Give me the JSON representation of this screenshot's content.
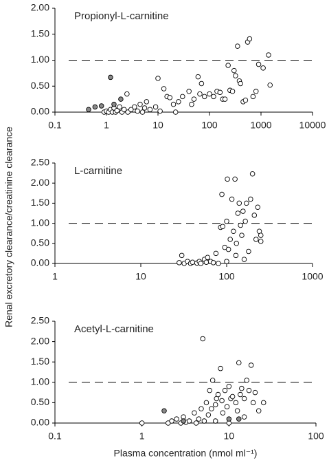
{
  "chart_data": [
    {
      "type": "scatter",
      "title": "Propionyl-L-carnitine",
      "xlog": true,
      "ref_line": 1,
      "xlim": [
        0.1,
        10000
      ],
      "xticks": [
        0.1,
        1,
        10,
        100,
        1000,
        10000
      ],
      "ylim": [
        0,
        2
      ],
      "yticks": [
        {
          "value": 0,
          "label": "0.00"
        },
        {
          "value": 0.5,
          "label": "0.50"
        },
        {
          "value": 1,
          "label": "1.00"
        },
        {
          "value": 1.5,
          "label": "1.50"
        },
        {
          "value": 2,
          "label": "2.00"
        }
      ],
      "series": [
        {
          "color": "#ffffff",
          "x": [
            0.9,
            1,
            1.1,
            1.2,
            1.3,
            1.4,
            1.5,
            1.6,
            1.8,
            2,
            2.2,
            2.5,
            2.6,
            3,
            3.5,
            4,
            4.5,
            5,
            5.5,
            6,
            7,
            9,
            10,
            11,
            13,
            15,
            17,
            20,
            22,
            25,
            30,
            40,
            45,
            50,
            60,
            65,
            70,
            80,
            100,
            120,
            140,
            160,
            180,
            200,
            230,
            250,
            280,
            300,
            320,
            350,
            380,
            400,
            450,
            500,
            550,
            600,
            700,
            800,
            900,
            1100,
            1400,
            1500
          ],
          "values": [
            0,
            0.02,
            0,
            0.05,
            0,
            0.08,
            0,
            0.03,
            0.1,
            0,
            0.05,
            0.35,
            0,
            0.05,
            0.1,
            0.02,
            0.15,
            0,
            0.08,
            0.2,
            0.05,
            0.1,
            0.65,
            0.02,
            0.45,
            0.3,
            0.28,
            0.15,
            0,
            0.2,
            0.3,
            0.4,
            0.15,
            0.25,
            0.68,
            0.35,
            0.55,
            0.3,
            0.35,
            0.3,
            0.4,
            0.38,
            0.25,
            0.25,
            0.9,
            0.42,
            0.4,
            0.8,
            0.7,
            1.27,
            0.6,
            0.55,
            0.2,
            0.23,
            1.35,
            1.41,
            0.3,
            0.4,
            0.92,
            0.85,
            1.1,
            0.52
          ]
        },
        {
          "color": "#8a8a8a",
          "x": [
            0.45,
            0.6,
            0.8,
            1.2,
            1.4,
            1.9
          ],
          "values": [
            0.05,
            0.1,
            0.12,
            0.67,
            0.15,
            0.25
          ]
        }
      ]
    },
    {
      "type": "scatter",
      "title": "L-carnitine",
      "xlog": true,
      "ref_line": 1,
      "ylabel": "Renal excretory clearance/creatinine clearance",
      "xlim": [
        1,
        1000
      ],
      "xticks": [
        1,
        10,
        100,
        1000
      ],
      "ylim": [
        0,
        2.5
      ],
      "yticks": [
        {
          "value": 0,
          "label": "0.00"
        },
        {
          "value": 0.5,
          "label": "0.50"
        },
        {
          "value": 1,
          "label": "1.00"
        },
        {
          "value": 1.5,
          "label": "1.50"
        },
        {
          "value": 2,
          "label": "2.00"
        },
        {
          "value": 2.5,
          "label": "2.50"
        }
      ],
      "series": [
        {
          "color": "#ffffff",
          "x": [
            28,
            30,
            32,
            35,
            38,
            40,
            45,
            48,
            50,
            55,
            58,
            60,
            65,
            70,
            75,
            80,
            85,
            88,
            90,
            95,
            100,
            100,
            102,
            105,
            110,
            115,
            120,
            125,
            128,
            130,
            135,
            140,
            145,
            150,
            155,
            160,
            165,
            170,
            180,
            190,
            200,
            210,
            220,
            230,
            240,
            250,
            250
          ],
          "values": [
            0.02,
            0.2,
            0,
            0.05,
            0,
            0.03,
            0.01,
            0.05,
            0,
            0.1,
            0.03,
            0.15,
            0.05,
            0.02,
            0.25,
            0,
            0.9,
            1.72,
            0.92,
            0.4,
            1.05,
            0.05,
            2.1,
            0.35,
            0.6,
            1.6,
            0.8,
            2.1,
            0.2,
            0.5,
            1.25,
            1.5,
            0.95,
            0.7,
            1.3,
            0.1,
            1.05,
            1.5,
            0.3,
            1.6,
            2.23,
            1.2,
            0.6,
            1.4,
            0.8,
            0.55,
            0.7
          ]
        }
      ]
    },
    {
      "type": "scatter",
      "title": "Acetyl-L-carnitine",
      "xlog": true,
      "ref_line": 1,
      "xlabel": "Plasma concentration (nmol ml⁻¹)",
      "xlim": [
        0.1,
        100
      ],
      "xticks": [
        0.1,
        1,
        10,
        100
      ],
      "ylim": [
        0,
        2.5
      ],
      "yticks": [
        {
          "value": 0,
          "label": "0.00"
        },
        {
          "value": 0.5,
          "label": "0.50"
        },
        {
          "value": 1,
          "label": "1.00"
        },
        {
          "value": 1.5,
          "label": "1.50"
        },
        {
          "value": 2,
          "label": "2.00"
        },
        {
          "value": 2.5,
          "label": "2.50"
        }
      ],
      "series": [
        {
          "color": "#ffffff",
          "x": [
            1,
            2,
            2.2,
            2.5,
            2.8,
            3,
            3.2,
            3.5,
            4,
            4.2,
            4.5,
            4.8,
            5,
            5.2,
            5.5,
            5.8,
            6,
            6.3,
            6.5,
            7,
            7.2,
            7.5,
            8,
            8.3,
            8.5,
            9,
            9.5,
            10,
            10.5,
            11,
            12,
            12.5,
            13,
            13.5,
            14,
            15,
            16,
            17,
            18,
            19,
            20,
            22,
            25,
            7,
            10,
            15
          ],
          "values": [
            0,
            0,
            0.05,
            0.1,
            0,
            0.15,
            0.02,
            0.05,
            0.25,
            0,
            0.1,
            0.35,
            2.07,
            0.05,
            0.5,
            0.2,
            0.8,
            0.35,
            1.05,
            0.45,
            0.6,
            0.7,
            1.34,
            0.55,
            0.25,
            0.8,
            0.4,
            0.9,
            0.6,
            0.65,
            0.5,
            0.3,
            1.48,
            0.7,
            0.85,
            0.6,
            1.05,
            0.8,
            1.42,
            0.5,
            0.75,
            0.3,
            0.5,
            0.05,
            0,
            0.15
          ]
        },
        {
          "color": "#8a8a8a",
          "x": [
            1.8,
            3,
            10,
            13
          ],
          "values": [
            0.3,
            0.05,
            0.1,
            0.1
          ]
        }
      ]
    }
  ]
}
